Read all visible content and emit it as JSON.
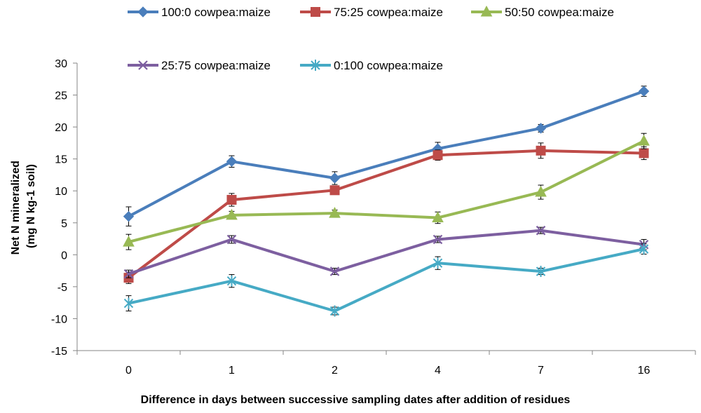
{
  "chart_data": {
    "type": "line",
    "title": "",
    "xlabel": "Difference in days between successive sampling dates after addition of residues",
    "ylabel_lines": [
      "Net N mineralized",
      "(mg N kg-1 soil)"
    ],
    "categories": [
      "0",
      "1",
      "2",
      "4",
      "7",
      "16"
    ],
    "ylim": [
      -15,
      30
    ],
    "yticks": [
      -15,
      -10,
      -5,
      0,
      5,
      10,
      15,
      20,
      25,
      30
    ],
    "grid": false,
    "legend_position": "top",
    "series": [
      {
        "name": "100:0 cowpea:maize",
        "color": "#4a7ebb",
        "marker": "diamond",
        "values": [
          6.0,
          14.6,
          12.0,
          16.6,
          19.8,
          25.6
        ],
        "errors": [
          1.5,
          0.9,
          1.0,
          1.0,
          0.6,
          0.8
        ]
      },
      {
        "name": "75:25 cowpea:maize",
        "color": "#be4b48",
        "marker": "square",
        "values": [
          -3.6,
          8.6,
          10.1,
          15.6,
          16.3,
          15.9
        ],
        "errors": [
          0.9,
          1.0,
          0.6,
          0.8,
          1.2,
          1.0
        ]
      },
      {
        "name": "50:50 cowpea:maize",
        "color": "#98b954",
        "marker": "triangle",
        "values": [
          2.0,
          6.2,
          6.5,
          5.8,
          9.8,
          17.8
        ],
        "errors": [
          1.2,
          0.6,
          0.5,
          0.9,
          1.1,
          1.2
        ]
      },
      {
        "name": "25:75 cowpea:maize",
        "color": "#7d5fa0",
        "marker": "x",
        "values": [
          -3.0,
          2.4,
          -2.6,
          2.4,
          3.8,
          1.6
        ],
        "errors": [
          0.6,
          0.6,
          0.5,
          0.5,
          0.5,
          0.8
        ]
      },
      {
        "name": "0:100 cowpea:maize",
        "color": "#46aac5",
        "marker": "star",
        "values": [
          -7.6,
          -4.1,
          -8.8,
          -1.3,
          -2.6,
          0.9
        ],
        "errors": [
          1.2,
          1.0,
          0.6,
          1.0,
          0.5,
          0.8
        ]
      }
    ]
  }
}
